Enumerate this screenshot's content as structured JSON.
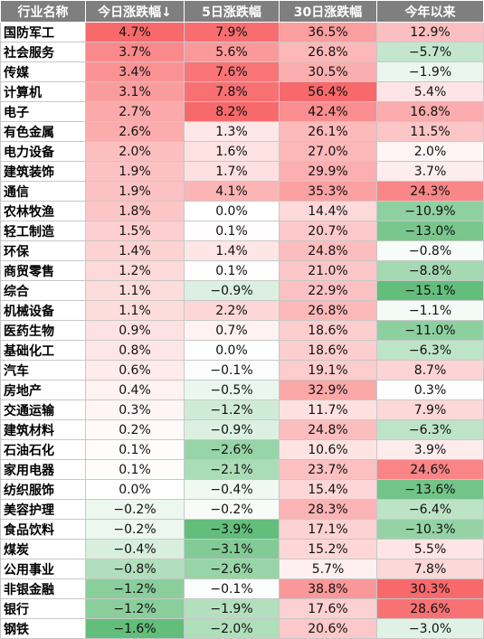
{
  "chart_data": {
    "type": "table",
    "headers": [
      "行业名称",
      "今日涨跌幅↓",
      "5日涨跌幅",
      "30日涨跌幅",
      "今年以来"
    ],
    "rows": [
      [
        "国防军工",
        4.7,
        7.9,
        36.5,
        12.9
      ],
      [
        "社会服务",
        3.7,
        5.6,
        26.8,
        -5.7
      ],
      [
        "传媒",
        3.4,
        7.6,
        30.5,
        -1.9
      ],
      [
        "计算机",
        3.1,
        7.8,
        56.4,
        5.4
      ],
      [
        "电子",
        2.7,
        8.2,
        42.4,
        16.8
      ],
      [
        "有色金属",
        2.6,
        1.3,
        26.1,
        11.5
      ],
      [
        "电力设备",
        2.0,
        1.6,
        27.0,
        2.0
      ],
      [
        "建筑装饰",
        1.9,
        1.7,
        29.9,
        3.7
      ],
      [
        "通信",
        1.9,
        4.1,
        35.3,
        24.3
      ],
      [
        "农林牧渔",
        1.8,
        0.0,
        14.4,
        -10.9
      ],
      [
        "轻工制造",
        1.5,
        0.1,
        20.7,
        -13.0
      ],
      [
        "环保",
        1.4,
        1.4,
        24.8,
        -0.8
      ],
      [
        "商贸零售",
        1.2,
        0.1,
        21.0,
        -8.8
      ],
      [
        "综合",
        1.1,
        -0.9,
        22.9,
        -15.1
      ],
      [
        "机械设备",
        1.1,
        2.2,
        26.8,
        -1.1
      ],
      [
        "医药生物",
        0.9,
        0.7,
        18.6,
        -11.0
      ],
      [
        "基础化工",
        0.8,
        0.0,
        18.6,
        -6.3
      ],
      [
        "汽车",
        0.6,
        -0.1,
        19.1,
        8.7
      ],
      [
        "房地产",
        0.4,
        -0.5,
        32.9,
        0.3
      ],
      [
        "交通运输",
        0.3,
        -1.2,
        11.7,
        7.9
      ],
      [
        "建筑材料",
        0.2,
        -0.9,
        24.8,
        -6.3
      ],
      [
        "石油石化",
        0.1,
        -2.6,
        10.6,
        3.9
      ],
      [
        "家用电器",
        0.1,
        -2.1,
        23.7,
        24.6
      ],
      [
        "纺织服饰",
        0.0,
        -0.4,
        15.4,
        -13.6
      ],
      [
        "美容护理",
        -0.2,
        -0.2,
        28.3,
        -6.4
      ],
      [
        "食品饮料",
        -0.2,
        -3.9,
        17.1,
        -10.3
      ],
      [
        "煤炭",
        -0.4,
        -3.1,
        15.2,
        5.5
      ],
      [
        "公用事业",
        -0.8,
        -2.6,
        5.7,
        7.8
      ],
      [
        "非银金融",
        -1.2,
        -0.1,
        38.8,
        30.3
      ],
      [
        "银行",
        -1.2,
        -1.9,
        17.6,
        28.6
      ],
      [
        "钢铁",
        -1.6,
        -2.0,
        20.6,
        -3.0
      ]
    ],
    "unit": "%",
    "color_scale": {
      "positive": "#f8696b",
      "negative": "#63be7b",
      "neutral": "#ffffff"
    }
  }
}
